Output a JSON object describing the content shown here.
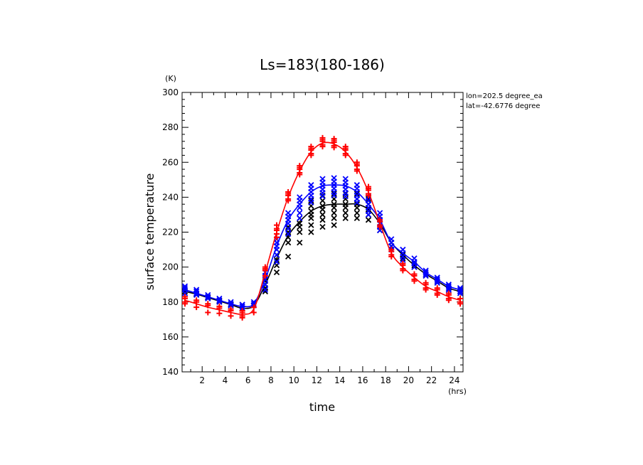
{
  "chart_data": {
    "type": "line",
    "title": "Ls=183(180-186)",
    "xlabel": "time",
    "ylabel": "surface temperature",
    "x_unit": "(hrs)",
    "y_unit": "(K)",
    "xlim": [
      0.25,
      24.75
    ],
    "ylim": [
      140,
      300
    ],
    "x_ticks": [
      2,
      4,
      6,
      8,
      10,
      12,
      14,
      16,
      18,
      20,
      22,
      24
    ],
    "y_ticks": [
      140,
      160,
      180,
      200,
      220,
      240,
      260,
      280,
      300
    ],
    "annotations": [
      "lon=202.5 degree_ea",
      "lat=-42.6776 degree"
    ],
    "grid": false,
    "x": [
      0.5,
      1.5,
      2.5,
      3.5,
      4.5,
      5.5,
      6.5,
      7.5,
      8.5,
      9.5,
      10.5,
      11.5,
      12.5,
      13.5,
      14.5,
      15.5,
      16.5,
      17.5,
      18.5,
      19.5,
      20.5,
      21.5,
      22.5,
      23.5,
      24.5
    ],
    "series": [
      {
        "color": "#ff0000",
        "values": [
          181,
          179,
          177,
          175.5,
          174,
          173,
          176,
          197,
          220,
          240,
          255,
          266,
          271,
          270.5,
          266,
          257,
          243,
          225,
          208,
          200,
          194,
          189,
          186,
          183,
          181
        ],
        "markers": {
          "symbol": "plus",
          "offsets": [
            [
              -2,
              1,
              2,
              -1
            ],
            [
              -2,
              1,
              2
            ],
            [
              -3,
              1,
              2
            ],
            [
              -2,
              1,
              2
            ],
            [
              -2,
              1,
              2
            ],
            [
              -2,
              1,
              2,
              -1
            ],
            [
              -2,
              1
            ],
            [
              -2,
              1,
              2,
              3
            ],
            [
              -3,
              -1,
              1,
              2,
              4
            ],
            [
              -1,
              -2,
              1,
              2,
              3
            ],
            [
              -2,
              -1,
              1,
              2,
              3
            ],
            [
              -2,
              -1,
              1,
              2,
              3
            ],
            [
              -2,
              -1,
              1,
              2,
              3
            ],
            [
              -2,
              -1,
              1,
              2,
              3
            ],
            [
              -2,
              -1,
              1,
              2,
              3
            ],
            [
              -2,
              -1,
              1,
              2,
              3
            ],
            [
              -2,
              -1,
              1,
              2,
              3
            ],
            [
              -2,
              -1,
              1,
              2
            ],
            [
              -2,
              -1,
              1,
              2
            ],
            [
              -2,
              -1,
              1,
              2
            ],
            [
              -2,
              -1,
              1,
              2
            ],
            [
              -2,
              -1,
              1,
              2
            ],
            [
              -2,
              -1,
              1,
              2
            ],
            [
              -2,
              -1,
              1,
              2
            ],
            [
              -2,
              -1,
              1
            ]
          ]
        }
      },
      {
        "color": "#0000ff",
        "values": [
          187,
          185,
          183,
          181,
          179,
          177.5,
          179,
          193,
          212,
          227,
          236,
          243,
          246.5,
          247,
          246.5,
          243,
          236,
          227,
          214,
          208,
          203,
          197,
          193,
          189,
          187
        ],
        "markers": {
          "symbol": "cross",
          "offsets": [
            [
              -2,
              0,
              1,
              2
            ],
            [
              -1,
              0,
              1,
              2
            ],
            [
              -1,
              0,
              1
            ],
            [
              -1,
              0,
              1
            ],
            [
              -1,
              0,
              1
            ],
            [
              -1,
              0,
              1
            ],
            [
              -1,
              0,
              1
            ],
            [
              -6,
              -3,
              0,
              2,
              4
            ],
            [
              -9,
              -5,
              -2,
              0,
              2,
              4
            ],
            [
              -8,
              -5,
              -2,
              0,
              2,
              4
            ],
            [
              -8,
              -5,
              -2,
              0,
              2,
              4
            ],
            [
              -6,
              -4,
              -2,
              0,
              2,
              4
            ],
            [
              -6,
              -4,
              -2,
              0,
              2,
              4
            ],
            [
              -6,
              -4,
              -2,
              0,
              2,
              4
            ],
            [
              -6,
              -4,
              -2,
              0,
              2,
              4
            ],
            [
              -6,
              -4,
              -2,
              0,
              2,
              4
            ],
            [
              -6,
              -4,
              -2,
              0,
              2,
              4
            ],
            [
              -6,
              -4,
              -2,
              0,
              2,
              4
            ],
            [
              -4,
              -2,
              0,
              2
            ],
            [
              -4,
              -2,
              0,
              2
            ],
            [
              -3,
              -1,
              0,
              2
            ],
            [
              -2,
              -1,
              0,
              1
            ],
            [
              -2,
              -1,
              0,
              1
            ],
            [
              -2,
              -1,
              0,
              1
            ],
            [
              -2,
              -1,
              0,
              1
            ]
          ]
        }
      },
      {
        "color": "#000000",
        "values": [
          186,
          184.5,
          182.5,
          180.5,
          178.5,
          176.5,
          178,
          190,
          205,
          218,
          226,
          232,
          235,
          236,
          236,
          236,
          233,
          225,
          214,
          207,
          201,
          196,
          192,
          188,
          186
        ],
        "markers": {
          "symbol": "cross",
          "offsets": [
            [
              0
            ],
            [
              0
            ],
            [
              0
            ],
            [
              0
            ],
            [
              0
            ],
            [
              0
            ],
            [
              0
            ],
            [
              -4,
              -2,
              0,
              2
            ],
            [
              -8,
              -4,
              -1,
              2
            ],
            [
              -12,
              -4,
              -1,
              2,
              5
            ],
            [
              -12,
              -6,
              -3,
              -1,
              2
            ],
            [
              -12,
              -8,
              -4,
              -2,
              0,
              3,
              6
            ],
            [
              -12,
              -8,
              -5,
              -2,
              0,
              3,
              6
            ],
            [
              -12,
              -8,
              -5,
              -2,
              0,
              3,
              6
            ],
            [
              -8,
              -5,
              -2,
              0,
              3,
              6
            ],
            [
              -8,
              -5,
              -2,
              0,
              3,
              6
            ],
            [
              -6,
              -3,
              0,
              3,
              6
            ],
            [
              -4,
              -2,
              0,
              2
            ],
            [
              -2,
              0
            ],
            [
              -2,
              0
            ],
            [
              -1,
              0
            ],
            [
              -1,
              0
            ],
            [
              -1,
              0
            ],
            [
              -1,
              0
            ],
            [
              0
            ]
          ]
        }
      }
    ]
  }
}
